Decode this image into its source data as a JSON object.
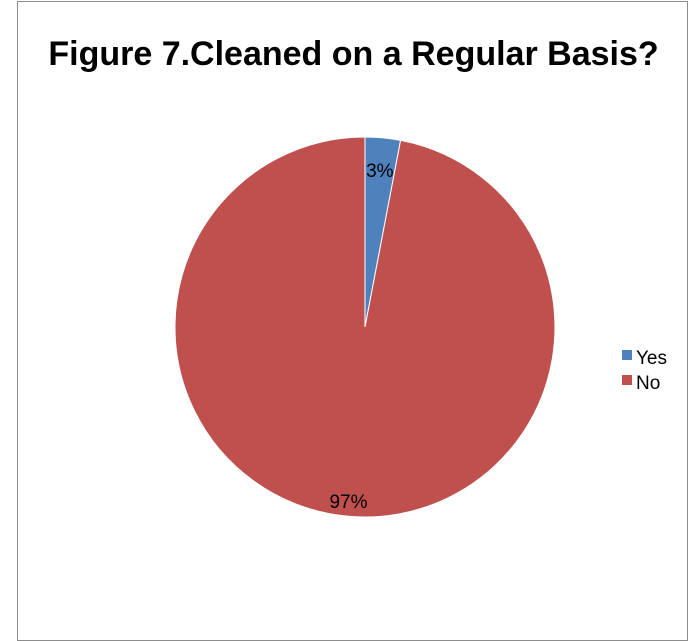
{
  "chart_data": {
    "type": "pie",
    "title": "Figure 7.Cleaned on a Regular Basis?",
    "categories": [
      "Yes",
      "No"
    ],
    "values": [
      3,
      97
    ],
    "data_labels": [
      "3%",
      "97%"
    ],
    "colors": [
      "#4f81bd",
      "#c0504d"
    ],
    "legend_position": "right",
    "start_angle": "12 o'clock, clockwise"
  }
}
